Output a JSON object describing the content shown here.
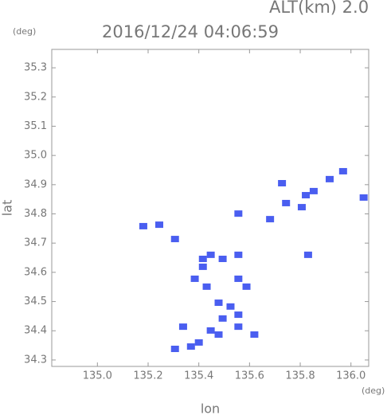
{
  "chart_data": {
    "type": "scatter",
    "title": "2016/12/24 04:06:59",
    "subtitle": "ALT(km) 2.0",
    "y_unit": "(deg)",
    "x_unit": "(deg)",
    "x_label": "lon",
    "y_label": "lat",
    "xlim": [
      134.82,
      136.07
    ],
    "ylim": [
      34.278,
      35.363
    ],
    "xticks": [
      {
        "value": 135.0,
        "label": "135.0"
      },
      135.2,
      135.4,
      135.6,
      135.8,
      {
        "value": 136.0,
        "label": "136.0"
      }
    ],
    "yticks": [
      34.3,
      34.4,
      34.5,
      34.6,
      34.7,
      34.8,
      34.9,
      {
        "value": 35.0,
        "label": "35.0"
      },
      35.1,
      35.2,
      35.3
    ],
    "series": [
      {
        "color": "#4a5ef0",
        "x": [
          135.181,
          135.244,
          135.306,
          135.416,
          135.447,
          135.494,
          135.556,
          135.384,
          135.431,
          135.478,
          135.525,
          135.556,
          135.494,
          135.556,
          135.588,
          135.447,
          135.478,
          135.4,
          135.369,
          135.338,
          135.416,
          135.619,
          135.556,
          135.728,
          135.744,
          135.822,
          135.853,
          135.916,
          135.969,
          136.05,
          135.831,
          135.681,
          135.556,
          135.806,
          135.306
        ],
        "values": [
          34.758,
          34.763,
          34.714,
          34.646,
          34.66,
          34.646,
          34.66,
          34.578,
          34.551,
          34.496,
          34.483,
          34.455,
          34.442,
          34.414,
          34.551,
          34.401,
          34.387,
          34.36,
          34.346,
          34.414,
          34.619,
          34.387,
          34.578,
          34.905,
          34.837,
          34.864,
          34.878,
          34.919,
          34.946,
          34.856,
          34.66,
          34.782,
          34.801,
          34.823,
          34.338
        ]
      }
    ]
  }
}
